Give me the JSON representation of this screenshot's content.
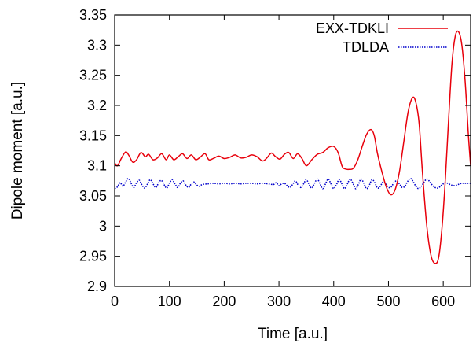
{
  "chart_data": {
    "type": "line",
    "title": "",
    "xlabel": "Time [a.u.]",
    "ylabel": "Dipole moment [a.u.]",
    "xlim": [
      0,
      650
    ],
    "ylim": [
      2.9,
      3.35
    ],
    "xticks": [
      0,
      100,
      200,
      300,
      400,
      500,
      600
    ],
    "yticks": [
      2.9,
      2.95,
      3.0,
      3.05,
      3.1,
      3.15,
      3.2,
      3.25,
      3.3,
      3.35
    ],
    "xtick_labels": [
      "0",
      "100",
      "200",
      "300",
      "400",
      "500",
      "600"
    ],
    "ytick_labels": [
      "2.9",
      "2.95",
      "3",
      "3.05",
      "3.1",
      "3.15",
      "3.2",
      "3.25",
      "3.3",
      "3.35"
    ],
    "grid": false,
    "legend": "top-right",
    "series": [
      {
        "name": "EXX-TDKLI",
        "color": "#e8000b",
        "style": "solid",
        "x": [
          0,
          5,
          12,
          20,
          26,
          33,
          40,
          48,
          56,
          62,
          70,
          78,
          86,
          94,
          100,
          108,
          116,
          124,
          132,
          140,
          148,
          156,
          165,
          172,
          180,
          190,
          200,
          210,
          220,
          230,
          240,
          250,
          260,
          270,
          278,
          286,
          294,
          302,
          310,
          318,
          326,
          334,
          342,
          350,
          360,
          370,
          380,
          390,
          400,
          408,
          415,
          420,
          428,
          436,
          444,
          452,
          460,
          468,
          474,
          480,
          488,
          496,
          504,
          512,
          520,
          528,
          536,
          544,
          550,
          556,
          562,
          570,
          578,
          586,
          592,
          598,
          604,
          610,
          616,
          622,
          628,
          634,
          640,
          646,
          650
        ],
        "y": [
          3.105,
          3.1,
          3.112,
          3.123,
          3.117,
          3.106,
          3.11,
          3.122,
          3.115,
          3.119,
          3.11,
          3.113,
          3.12,
          3.11,
          3.118,
          3.11,
          3.115,
          3.12,
          3.112,
          3.118,
          3.11,
          3.114,
          3.12,
          3.11,
          3.112,
          3.116,
          3.112,
          3.114,
          3.118,
          3.113,
          3.114,
          3.118,
          3.115,
          3.108,
          3.113,
          3.121,
          3.115,
          3.111,
          3.119,
          3.122,
          3.112,
          3.12,
          3.112,
          3.1,
          3.11,
          3.119,
          3.122,
          3.13,
          3.132,
          3.122,
          3.1,
          3.095,
          3.094,
          3.096,
          3.11,
          3.132,
          3.152,
          3.16,
          3.15,
          3.12,
          3.09,
          3.065,
          3.052,
          3.06,
          3.09,
          3.14,
          3.19,
          3.213,
          3.205,
          3.17,
          3.09,
          3.0,
          2.95,
          2.938,
          2.95,
          3.0,
          3.08,
          3.18,
          3.27,
          3.315,
          3.322,
          3.3,
          3.24,
          3.15,
          3.1
        ]
      },
      {
        "name": "TDLDA",
        "color": "#0000cc",
        "style": "dotted",
        "x": [
          0,
          5,
          10,
          15,
          20,
          25,
          30,
          35,
          40,
          45,
          50,
          55,
          60,
          65,
          70,
          75,
          80,
          85,
          90,
          95,
          100,
          105,
          110,
          115,
          120,
          125,
          130,
          135,
          140,
          145,
          150,
          155,
          160,
          170,
          180,
          190,
          200,
          210,
          220,
          230,
          240,
          250,
          260,
          270,
          280,
          290,
          295,
          300,
          305,
          310,
          315,
          320,
          325,
          330,
          335,
          340,
          345,
          350,
          355,
          360,
          365,
          370,
          375,
          380,
          385,
          390,
          395,
          400,
          405,
          410,
          415,
          420,
          425,
          430,
          435,
          440,
          445,
          450,
          455,
          460,
          465,
          470,
          475,
          480,
          485,
          490,
          495,
          500,
          505,
          510,
          515,
          520,
          525,
          530,
          535,
          540,
          545,
          550,
          555,
          560,
          565,
          570,
          575,
          580,
          585,
          590,
          595,
          600,
          605,
          610,
          615,
          620,
          625,
          630,
          635,
          640,
          645,
          650
        ],
        "y": [
          3.062,
          3.065,
          3.072,
          3.066,
          3.073,
          3.079,
          3.071,
          3.064,
          3.072,
          3.076,
          3.068,
          3.063,
          3.07,
          3.077,
          3.07,
          3.064,
          3.071,
          3.076,
          3.069,
          3.063,
          3.071,
          3.077,
          3.07,
          3.064,
          3.071,
          3.075,
          3.068,
          3.064,
          3.07,
          3.073,
          3.068,
          3.066,
          3.069,
          3.07,
          3.071,
          3.07,
          3.071,
          3.07,
          3.071,
          3.07,
          3.071,
          3.071,
          3.07,
          3.071,
          3.07,
          3.069,
          3.072,
          3.067,
          3.07,
          3.071,
          3.067,
          3.064,
          3.069,
          3.075,
          3.068,
          3.064,
          3.07,
          3.077,
          3.069,
          3.063,
          3.071,
          3.078,
          3.07,
          3.062,
          3.07,
          3.078,
          3.07,
          3.062,
          3.069,
          3.077,
          3.07,
          3.062,
          3.07,
          3.078,
          3.071,
          3.062,
          3.069,
          3.078,
          3.071,
          3.062,
          3.068,
          3.077,
          3.072,
          3.063,
          3.066,
          3.073,
          3.07,
          3.064,
          3.065,
          3.072,
          3.075,
          3.07,
          3.064,
          3.066,
          3.074,
          3.079,
          3.074,
          3.066,
          3.062,
          3.066,
          3.073,
          3.078,
          3.074,
          3.068,
          3.064,
          3.063,
          3.066,
          3.07,
          3.072,
          3.07,
          3.068,
          3.067,
          3.068,
          3.07,
          3.071,
          3.071,
          3.071,
          3.071
        ]
      }
    ]
  }
}
